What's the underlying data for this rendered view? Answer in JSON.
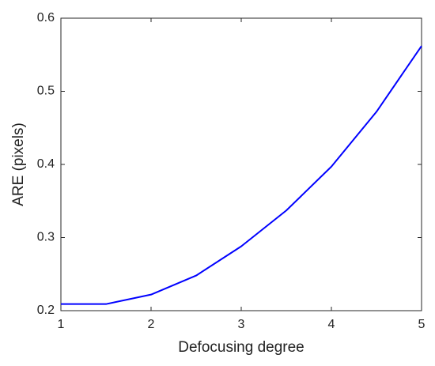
{
  "chart_data": {
    "type": "line",
    "x_label": "Defocusing degree",
    "y_label": "ARE (pixels)",
    "x": [
      1,
      1.5,
      2,
      2.5,
      3,
      3.5,
      4,
      4.5,
      5
    ],
    "series": [
      {
        "color": "#0000ff",
        "values": [
          0.209,
          0.209,
          0.222,
          0.248,
          0.288,
          0.337,
          0.397,
          0.472,
          0.562
        ]
      }
    ],
    "xlim": [
      1,
      5
    ],
    "ylim": [
      0.2,
      0.6
    ],
    "xticks": [
      1,
      2,
      3,
      4,
      5
    ],
    "yticks": [
      0.2,
      0.3,
      0.4,
      0.5,
      0.6
    ]
  }
}
